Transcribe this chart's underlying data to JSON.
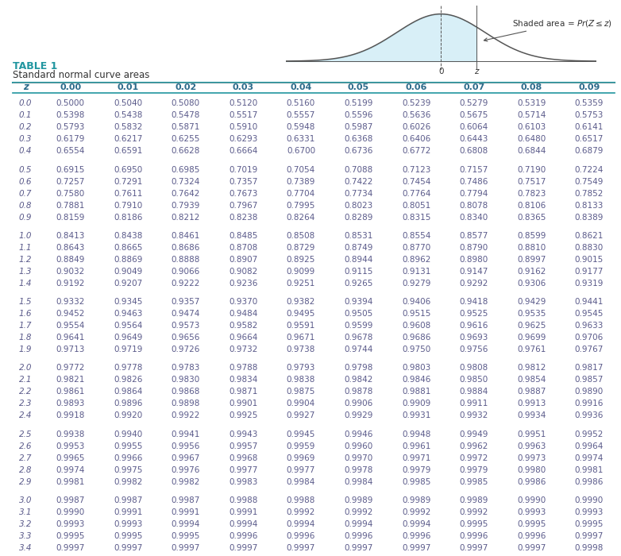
{
  "title": "TABLE 1",
  "subtitle": "Standard normal curve areas",
  "title_color": "#2196a0",
  "columns": [
    "z",
    "0.00",
    "0.01",
    "0.02",
    "0.03",
    "0.04",
    "0.05",
    "0.06",
    "0.07",
    "0.08",
    "0.09"
  ],
  "rows": [
    [
      "0.0",
      "0.5000",
      "0.5040",
      "0.5080",
      "0.5120",
      "0.5160",
      "0.5199",
      "0.5239",
      "0.5279",
      "0.5319",
      "0.5359"
    ],
    [
      "0.1",
      "0.5398",
      "0.5438",
      "0.5478",
      "0.5517",
      "0.5557",
      "0.5596",
      "0.5636",
      "0.5675",
      "0.5714",
      "0.5753"
    ],
    [
      "0.2",
      "0.5793",
      "0.5832",
      "0.5871",
      "0.5910",
      "0.5948",
      "0.5987",
      "0.6026",
      "0.6064",
      "0.6103",
      "0.6141"
    ],
    [
      "0.3",
      "0.6179",
      "0.6217",
      "0.6255",
      "0.6293",
      "0.6331",
      "0.6368",
      "0.6406",
      "0.6443",
      "0.6480",
      "0.6517"
    ],
    [
      "0.4",
      "0.6554",
      "0.6591",
      "0.6628",
      "0.6664",
      "0.6700",
      "0.6736",
      "0.6772",
      "0.6808",
      "0.6844",
      "0.6879"
    ],
    [
      "0.5",
      "0.6915",
      "0.6950",
      "0.6985",
      "0.7019",
      "0.7054",
      "0.7088",
      "0.7123",
      "0.7157",
      "0.7190",
      "0.7224"
    ],
    [
      "0.6",
      "0.7257",
      "0.7291",
      "0.7324",
      "0.7357",
      "0.7389",
      "0.7422",
      "0.7454",
      "0.7486",
      "0.7517",
      "0.7549"
    ],
    [
      "0.7",
      "0.7580",
      "0.7611",
      "0.7642",
      "0.7673",
      "0.7704",
      "0.7734",
      "0.7764",
      "0.7794",
      "0.7823",
      "0.7852"
    ],
    [
      "0.8",
      "0.7881",
      "0.7910",
      "0.7939",
      "0.7967",
      "0.7995",
      "0.8023",
      "0.8051",
      "0.8078",
      "0.8106",
      "0.8133"
    ],
    [
      "0.9",
      "0.8159",
      "0.8186",
      "0.8212",
      "0.8238",
      "0.8264",
      "0.8289",
      "0.8315",
      "0.8340",
      "0.8365",
      "0.8389"
    ],
    [
      "1.0",
      "0.8413",
      "0.8438",
      "0.8461",
      "0.8485",
      "0.8508",
      "0.8531",
      "0.8554",
      "0.8577",
      "0.8599",
      "0.8621"
    ],
    [
      "1.1",
      "0.8643",
      "0.8665",
      "0.8686",
      "0.8708",
      "0.8729",
      "0.8749",
      "0.8770",
      "0.8790",
      "0.8810",
      "0.8830"
    ],
    [
      "1.2",
      "0.8849",
      "0.8869",
      "0.8888",
      "0.8907",
      "0.8925",
      "0.8944",
      "0.8962",
      "0.8980",
      "0.8997",
      "0.9015"
    ],
    [
      "1.3",
      "0.9032",
      "0.9049",
      "0.9066",
      "0.9082",
      "0.9099",
      "0.9115",
      "0.9131",
      "0.9147",
      "0.9162",
      "0.9177"
    ],
    [
      "1.4",
      "0.9192",
      "0.9207",
      "0.9222",
      "0.9236",
      "0.9251",
      "0.9265",
      "0.9279",
      "0.9292",
      "0.9306",
      "0.9319"
    ],
    [
      "1.5",
      "0.9332",
      "0.9345",
      "0.9357",
      "0.9370",
      "0.9382",
      "0.9394",
      "0.9406",
      "0.9418",
      "0.9429",
      "0.9441"
    ],
    [
      "1.6",
      "0.9452",
      "0.9463",
      "0.9474",
      "0.9484",
      "0.9495",
      "0.9505",
      "0.9515",
      "0.9525",
      "0.9535",
      "0.9545"
    ],
    [
      "1.7",
      "0.9554",
      "0.9564",
      "0.9573",
      "0.9582",
      "0.9591",
      "0.9599",
      "0.9608",
      "0.9616",
      "0.9625",
      "0.9633"
    ],
    [
      "1.8",
      "0.9641",
      "0.9649",
      "0.9656",
      "0.9664",
      "0.9671",
      "0.9678",
      "0.9686",
      "0.9693",
      "0.9699",
      "0.9706"
    ],
    [
      "1.9",
      "0.9713",
      "0.9719",
      "0.9726",
      "0.9732",
      "0.9738",
      "0.9744",
      "0.9750",
      "0.9756",
      "0.9761",
      "0.9767"
    ],
    [
      "2.0",
      "0.9772",
      "0.9778",
      "0.9783",
      "0.9788",
      "0.9793",
      "0.9798",
      "0.9803",
      "0.9808",
      "0.9812",
      "0.9817"
    ],
    [
      "2.1",
      "0.9821",
      "0.9826",
      "0.9830",
      "0.9834",
      "0.9838",
      "0.9842",
      "0.9846",
      "0.9850",
      "0.9854",
      "0.9857"
    ],
    [
      "2.2",
      "0.9861",
      "0.9864",
      "0.9868",
      "0.9871",
      "0.9875",
      "0.9878",
      "0.9881",
      "0.9884",
      "0.9887",
      "0.9890"
    ],
    [
      "2.3",
      "0.9893",
      "0.9896",
      "0.9898",
      "0.9901",
      "0.9904",
      "0.9906",
      "0.9909",
      "0.9911",
      "0.9913",
      "0.9916"
    ],
    [
      "2.4",
      "0.9918",
      "0.9920",
      "0.9922",
      "0.9925",
      "0.9927",
      "0.9929",
      "0.9931",
      "0.9932",
      "0.9934",
      "0.9936"
    ],
    [
      "2.5",
      "0.9938",
      "0.9940",
      "0.9941",
      "0.9943",
      "0.9945",
      "0.9946",
      "0.9948",
      "0.9949",
      "0.9951",
      "0.9952"
    ],
    [
      "2.6",
      "0.9953",
      "0.9955",
      "0.9956",
      "0.9957",
      "0.9959",
      "0.9960",
      "0.9961",
      "0.9962",
      "0.9963",
      "0.9964"
    ],
    [
      "2.7",
      "0.9965",
      "0.9966",
      "0.9967",
      "0.9968",
      "0.9969",
      "0.9970",
      "0.9971",
      "0.9972",
      "0.9973",
      "0.9974"
    ],
    [
      "2.8",
      "0.9974",
      "0.9975",
      "0.9976",
      "0.9977",
      "0.9977",
      "0.9978",
      "0.9979",
      "0.9979",
      "0.9980",
      "0.9981"
    ],
    [
      "2.9",
      "0.9981",
      "0.9982",
      "0.9982",
      "0.9983",
      "0.9984",
      "0.9984",
      "0.9985",
      "0.9985",
      "0.9986",
      "0.9986"
    ],
    [
      "3.0",
      "0.9987",
      "0.9987",
      "0.9987",
      "0.9988",
      "0.9988",
      "0.9989",
      "0.9989",
      "0.9989",
      "0.9990",
      "0.9990"
    ],
    [
      "3.1",
      "0.9990",
      "0.9991",
      "0.9991",
      "0.9991",
      "0.9992",
      "0.9992",
      "0.9992",
      "0.9992",
      "0.9993",
      "0.9993"
    ],
    [
      "3.2",
      "0.9993",
      "0.9993",
      "0.9994",
      "0.9994",
      "0.9994",
      "0.9994",
      "0.9994",
      "0.9995",
      "0.9995",
      "0.9995"
    ],
    [
      "3.3",
      "0.9995",
      "0.9995",
      "0.9995",
      "0.9996",
      "0.9996",
      "0.9996",
      "0.9996",
      "0.9996",
      "0.9996",
      "0.9997"
    ],
    [
      "3.4",
      "0.9997",
      "0.9997",
      "0.9997",
      "0.9997",
      "0.9997",
      "0.9997",
      "0.9997",
      "0.9997",
      "0.9997",
      "0.9998"
    ]
  ],
  "group_breaks": [
    4,
    9,
    14,
    19,
    24,
    29
  ],
  "teal_color": "#2196a0",
  "header_color": "#2b6a8a",
  "data_color": "#5a5a8a",
  "bg_color": "#ffffff"
}
